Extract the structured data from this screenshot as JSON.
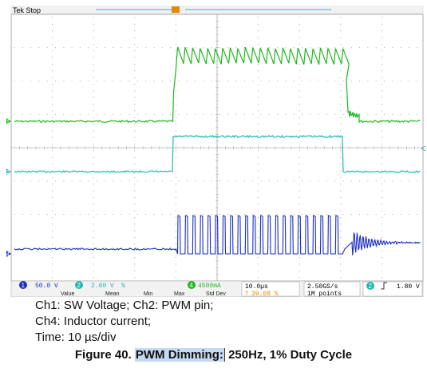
{
  "scope": {
    "title": "Tek Stop",
    "background": "#ffffff",
    "grid_color": "#9a9a9a",
    "status_bar": {
      "ch1_scale": "50.0 V",
      "ch2_scale": "2.00 V",
      "ch2_unit_mark": "%",
      "ch4_scale": "4500mA",
      "timebase": "10.0µs",
      "trigger_position": "39.08 %",
      "sample_rate": "2.50GS/s",
      "record_length": "1M points",
      "trigger_channel": "2",
      "trigger_level": "1.80 V",
      "measure_headers": [
        "Value",
        "Mean",
        "Min",
        "Max",
        "Std Dev"
      ],
      "ch1_badge": "1",
      "ch2_badge": "2",
      "ch4_badge": "4"
    },
    "markers": {
      "ch1": "1",
      "ch2": "2",
      "ch4": "4",
      "trigger": "T"
    }
  },
  "chart_data": {
    "type": "line",
    "title": "",
    "x_unit": "divisions",
    "x_range": [
      0,
      10
    ],
    "grid": true,
    "series": [
      {
        "name": "Ch1",
        "color": "#1fb81f",
        "x": [
          0,
          4.32,
          4.38,
          8.6,
          8.7,
          10
        ],
        "y": [
          0,
          0,
          1.35,
          1.35,
          0.1,
          0
        ]
      },
      {
        "name": "Ch2",
        "color": "#1fb8b0",
        "x": [
          0,
          4.32,
          4.36,
          8.62,
          8.66,
          10
        ],
        "y": [
          0,
          0,
          1.2,
          1.2,
          0,
          0
        ]
      },
      {
        "name": "Ch4",
        "color": "#1a2fc0",
        "x": [
          0,
          4.32,
          4.36,
          8.6,
          8.64,
          10
        ],
        "y": [
          0,
          0,
          1.05,
          1.05,
          0,
          0
        ]
      }
    ]
  },
  "caption": {
    "line1": "Ch1: SW Voltage; Ch2: PWM pin;",
    "line2": "Ch4: Inductor current;",
    "line3": "Time: 10 µs/div",
    "figure_prefix": "Figure 40.",
    "figure_highlight": "PWM Dimming:",
    "figure_rest": "250Hz, 1% Duty Cycle"
  }
}
